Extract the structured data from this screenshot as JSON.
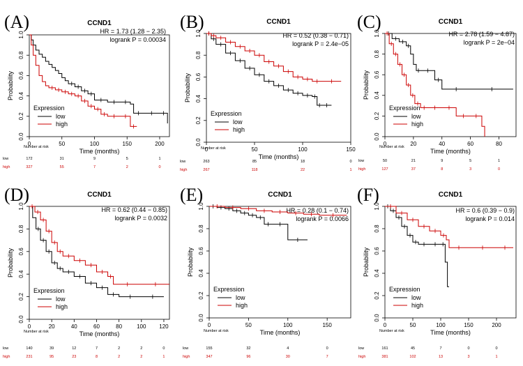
{
  "chart_data": [
    {
      "type": "line",
      "panel": "(A)",
      "title": "CCND1",
      "xlabel": "Time (months)",
      "ylabel": "Probability",
      "xlim": [
        0,
        215
      ],
      "ylim": [
        0,
        1
      ],
      "x_ticks": [
        0,
        50,
        100,
        150,
        200
      ],
      "y_ticks": [
        0.0,
        0.2,
        0.4,
        0.6,
        0.8,
        1.0
      ],
      "hr_text": "HR = 1.73 (1.28 − 2.35)",
      "logrank_text": "logrank P = 0.00034",
      "legend": {
        "title": "Expression",
        "placement": "bottom-left"
      },
      "series": [
        {
          "name": "low",
          "color": "#000000",
          "x": [
            0,
            3,
            6,
            10,
            15,
            20,
            25,
            30,
            35,
            40,
            45,
            50,
            55,
            60,
            70,
            80,
            90,
            100,
            120,
            140,
            155,
            160,
            175,
            200,
            212
          ],
          "y": [
            1.0,
            0.95,
            0.9,
            0.85,
            0.81,
            0.78,
            0.74,
            0.71,
            0.68,
            0.65,
            0.62,
            0.58,
            0.55,
            0.52,
            0.49,
            0.45,
            0.42,
            0.36,
            0.34,
            0.34,
            0.32,
            0.23,
            0.23,
            0.23,
            0.13
          ]
        },
        {
          "name": "high",
          "color": "#cc0000",
          "x": [
            0,
            3,
            6,
            10,
            15,
            20,
            25,
            30,
            40,
            50,
            60,
            70,
            80,
            90,
            100,
            110,
            120,
            140,
            155,
            165
          ],
          "y": [
            1.0,
            0.9,
            0.8,
            0.7,
            0.6,
            0.54,
            0.5,
            0.48,
            0.46,
            0.44,
            0.42,
            0.4,
            0.35,
            0.3,
            0.27,
            0.22,
            0.2,
            0.2,
            0.1,
            0.1
          ]
        }
      ],
      "risk_table": {
        "label": "Number at risk",
        "times": [
          0,
          50,
          100,
          150,
          200
        ],
        "rows": [
          {
            "name": "low",
            "values": [
              "172",
              "31",
              "9",
              "5",
              "1"
            ]
          },
          {
            "name": "high",
            "values": [
              "327",
              "55",
              "7",
              "2",
              "0"
            ]
          }
        ]
      }
    },
    {
      "type": "line",
      "panel": "(B)",
      "title": "CCND1",
      "xlabel": "Time (months)",
      "ylabel": "Probability",
      "xlim": [
        0,
        150
      ],
      "ylim": [
        0,
        1
      ],
      "x_ticks": [
        0,
        50,
        100,
        150
      ],
      "y_ticks": [
        0.0,
        0.2,
        0.4,
        0.6,
        0.8,
        1.0
      ],
      "hr_text": "HR = 0.52 (0.38 − 0.71)",
      "logrank_text": "logrank P = 2.4e−05",
      "legend": {
        "title": "Expression",
        "placement": "bottom-left"
      },
      "series": [
        {
          "name": "low",
          "color": "#000000",
          "x": [
            0,
            5,
            10,
            20,
            30,
            40,
            50,
            60,
            70,
            80,
            90,
            100,
            110,
            115,
            120,
            130
          ],
          "y": [
            1.0,
            0.95,
            0.9,
            0.82,
            0.75,
            0.68,
            0.62,
            0.56,
            0.52,
            0.48,
            0.45,
            0.43,
            0.42,
            0.34,
            0.34,
            0.34
          ]
        },
        {
          "name": "high",
          "color": "#cc0000",
          "x": [
            0,
            5,
            10,
            20,
            30,
            40,
            50,
            60,
            70,
            80,
            90,
            100,
            110,
            120,
            140
          ],
          "y": [
            1.0,
            0.98,
            0.96,
            0.92,
            0.88,
            0.84,
            0.8,
            0.74,
            0.7,
            0.65,
            0.6,
            0.58,
            0.56,
            0.56,
            0.56
          ]
        }
      ],
      "risk_table": {
        "label": "Number at risk",
        "times": [
          0,
          50,
          100,
          150
        ],
        "rows": [
          {
            "name": "low",
            "values": [
              "263",
              "85",
              "18",
              "0"
            ]
          },
          {
            "name": "high",
            "values": [
              "267",
              "118",
              "22",
              "1"
            ]
          }
        ]
      }
    },
    {
      "type": "line",
      "panel": "(C)",
      "title": "CCND1",
      "xlabel": "Time (months)",
      "ylabel": "Probability",
      "xlim": [
        0,
        92
      ],
      "ylim": [
        0,
        1
      ],
      "x_ticks": [
        0,
        20,
        40,
        60,
        80
      ],
      "y_ticks": [
        0.0,
        0.2,
        0.4,
        0.6,
        0.8,
        1.0
      ],
      "hr_text": "HR = 2.78 (1.59 − 4.87)",
      "logrank_text": "logrank P = 2e−04",
      "legend": {
        "title": "Expression",
        "placement": "bottom-left"
      },
      "series": [
        {
          "name": "low",
          "color": "#000000",
          "x": [
            0,
            5,
            10,
            15,
            18,
            20,
            22,
            25,
            35,
            40,
            60,
            90
          ],
          "y": [
            1.0,
            0.95,
            0.92,
            0.88,
            0.8,
            0.7,
            0.64,
            0.64,
            0.55,
            0.46,
            0.46,
            0.46
          ]
        },
        {
          "name": "high",
          "color": "#cc0000",
          "x": [
            0,
            3,
            6,
            9,
            12,
            15,
            18,
            21,
            25,
            30,
            40,
            50,
            60,
            68,
            70
          ],
          "y": [
            1.0,
            0.9,
            0.8,
            0.7,
            0.6,
            0.5,
            0.4,
            0.32,
            0.28,
            0.28,
            0.28,
            0.2,
            0.2,
            0.1,
            0.0
          ]
        }
      ],
      "risk_table": {
        "label": "Number at risk",
        "times": [
          0,
          20,
          40,
          60,
          80
        ],
        "rows": [
          {
            "name": "low",
            "values": [
              "50",
              "21",
              "9",
              "5",
              "1"
            ]
          },
          {
            "name": "high",
            "values": [
              "127",
              "37",
              "8",
              "3",
              "0"
            ]
          }
        ]
      }
    },
    {
      "type": "line",
      "panel": "(D)",
      "title": "CCND1",
      "xlabel": "Time (months)",
      "ylabel": "Probability",
      "xlim": [
        0,
        125
      ],
      "ylim": [
        0,
        1
      ],
      "x_ticks": [
        0,
        20,
        40,
        60,
        80,
        100,
        120
      ],
      "y_ticks": [
        0.0,
        0.2,
        0.4,
        0.6,
        0.8,
        1.0
      ],
      "hr_text": "HR = 0.62 (0.44 − 0.85)",
      "logrank_text": "logrank P = 0.0032",
      "legend": {
        "title": "Expression",
        "placement": "bottom-left"
      },
      "series": [
        {
          "name": "low",
          "color": "#000000",
          "x": [
            0,
            3,
            6,
            10,
            15,
            20,
            25,
            30,
            40,
            50,
            60,
            70,
            80,
            100,
            120
          ],
          "y": [
            1.0,
            0.9,
            0.8,
            0.7,
            0.6,
            0.5,
            0.45,
            0.42,
            0.38,
            0.32,
            0.28,
            0.22,
            0.2,
            0.2,
            0.2
          ]
        },
        {
          "name": "high",
          "color": "#cc0000",
          "x": [
            0,
            5,
            10,
            15,
            20,
            25,
            30,
            40,
            50,
            60,
            70,
            75,
            100,
            125
          ],
          "y": [
            1.0,
            0.95,
            0.88,
            0.78,
            0.68,
            0.6,
            0.56,
            0.52,
            0.48,
            0.42,
            0.38,
            0.31,
            0.31,
            0.31
          ]
        }
      ],
      "risk_table": {
        "label": "Number at risk",
        "times": [
          0,
          20,
          40,
          60,
          80,
          100,
          120
        ],
        "rows": [
          {
            "name": "low",
            "values": [
              "140",
              "39",
              "12",
              "7",
              "2",
              "2",
              "0"
            ]
          },
          {
            "name": "high",
            "values": [
              "231",
              "95",
              "23",
              "8",
              "2",
              "2",
              "1"
            ]
          }
        ]
      }
    },
    {
      "type": "line",
      "panel": "(E)",
      "title": "CCND1",
      "xlabel": "Time (months)",
      "ylabel": "Probability",
      "xlim": [
        0,
        180
      ],
      "ylim": [
        0,
        1
      ],
      "x_ticks": [
        0,
        50,
        100,
        150
      ],
      "y_ticks": [
        0.0,
        0.2,
        0.4,
        0.6,
        0.8,
        1.0
      ],
      "hr_text": "HR = 0.28 (0.1 − 0.74)",
      "logrank_text": "logrank P = 0.0066",
      "legend": {
        "title": "Expression",
        "placement": "bottom-left"
      },
      "series": [
        {
          "name": "low",
          "color": "#000000",
          "x": [
            0,
            10,
            20,
            30,
            40,
            50,
            60,
            70,
            80,
            100,
            125
          ],
          "y": [
            1.0,
            0.99,
            0.98,
            0.96,
            0.94,
            0.92,
            0.9,
            0.84,
            0.84,
            0.7,
            0.7
          ]
        },
        {
          "name": "high",
          "color": "#cc0000",
          "x": [
            0,
            20,
            40,
            60,
            80,
            100,
            120,
            140,
            175
          ],
          "y": [
            1.0,
            0.99,
            0.98,
            0.96,
            0.95,
            0.94,
            0.93,
            0.92,
            0.92
          ]
        }
      ],
      "risk_table": {
        "label": "Number at risk",
        "times": [
          0,
          50,
          100,
          150
        ],
        "rows": [
          {
            "name": "low",
            "values": [
              "155",
              "32",
              "4",
              "0"
            ]
          },
          {
            "name": "high",
            "values": [
              "347",
              "96",
              "30",
              "7"
            ]
          }
        ]
      }
    },
    {
      "type": "line",
      "panel": "(F)",
      "title": "CCND1",
      "xlabel": "Time (months)",
      "ylabel": "Probability",
      "xlim": [
        0,
        235
      ],
      "ylim": [
        0,
        1
      ],
      "x_ticks": [
        0,
        50,
        100,
        150,
        200
      ],
      "y_ticks": [
        0.0,
        0.2,
        0.4,
        0.6,
        0.8,
        1.0
      ],
      "hr_text": "HR = 0.6 (0.39 − 0.9)",
      "logrank_text": "logrank P = 0.014",
      "legend": {
        "title": "Expression",
        "placement": "bottom-left"
      },
      "series": [
        {
          "name": "low",
          "color": "#000000",
          "x": [
            0,
            10,
            20,
            30,
            40,
            50,
            60,
            80,
            100,
            108,
            112,
            115
          ],
          "y": [
            1.0,
            0.96,
            0.9,
            0.82,
            0.74,
            0.68,
            0.66,
            0.66,
            0.66,
            0.5,
            0.28,
            0.28
          ]
        },
        {
          "name": "high",
          "color": "#cc0000",
          "x": [
            0,
            20,
            40,
            60,
            80,
            100,
            110,
            115,
            150,
            200,
            230
          ],
          "y": [
            1.0,
            0.94,
            0.88,
            0.82,
            0.78,
            0.74,
            0.7,
            0.63,
            0.63,
            0.63,
            0.63
          ]
        }
      ],
      "risk_table": {
        "label": "Number at risk",
        "times": [
          0,
          50,
          100,
          150,
          200
        ],
        "rows": [
          {
            "name": "low",
            "values": [
              "161",
              "45",
              "7",
              "0",
              "0"
            ]
          },
          {
            "name": "high",
            "values": [
              "381",
              "102",
              "13",
              "3",
              "1"
            ]
          }
        ]
      }
    }
  ]
}
